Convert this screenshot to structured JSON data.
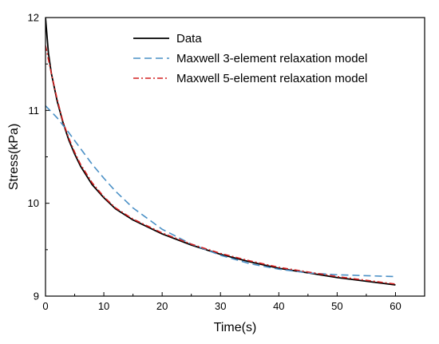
{
  "chart_data": {
    "type": "line",
    "title": "",
    "xlabel": "Time(s)",
    "ylabel": "Stress(kPa)",
    "xlim": [
      0,
      65
    ],
    "ylim": [
      9,
      12
    ],
    "x_ticks": [
      0,
      10,
      20,
      30,
      40,
      50,
      60
    ],
    "y_ticks": [
      9,
      10,
      11,
      12
    ],
    "grid": false,
    "legend_position": "top-right",
    "series": [
      {
        "name": "Data",
        "color": "#000000",
        "style": "solid",
        "x": [
          0,
          0.5,
          1,
          2,
          3,
          4,
          5,
          6,
          8,
          10,
          12,
          15,
          20,
          25,
          30,
          35,
          40,
          45,
          50,
          55,
          60
        ],
        "y": [
          12.0,
          11.62,
          11.4,
          11.1,
          10.87,
          10.68,
          10.53,
          10.4,
          10.2,
          10.06,
          9.94,
          9.82,
          9.67,
          9.55,
          9.45,
          9.37,
          9.3,
          9.25,
          9.2,
          9.16,
          9.12
        ]
      },
      {
        "name": "Maxwell 3-element relaxation model",
        "color": "#4a90c6",
        "style": "dashed",
        "x": [
          0,
          2,
          4,
          6,
          8,
          10,
          12,
          15,
          20,
          25,
          30,
          35,
          40,
          45,
          50,
          55,
          60
        ],
        "y": [
          11.05,
          10.92,
          10.76,
          10.59,
          10.42,
          10.27,
          10.13,
          9.95,
          9.72,
          9.56,
          9.44,
          9.35,
          9.29,
          9.25,
          9.23,
          9.22,
          9.21
        ]
      },
      {
        "name": "Maxwell 5-element relaxation model",
        "color": "#d42020",
        "style": "dashdot",
        "x": [
          0,
          0.5,
          1,
          2,
          3,
          4,
          5,
          6,
          8,
          10,
          12,
          15,
          20,
          25,
          30,
          35,
          40,
          45,
          50,
          55,
          60
        ],
        "y": [
          11.7,
          11.55,
          11.4,
          11.12,
          10.88,
          10.7,
          10.55,
          10.42,
          10.22,
          10.07,
          9.95,
          9.83,
          9.68,
          9.56,
          9.46,
          9.38,
          9.31,
          9.26,
          9.21,
          9.17,
          9.13
        ]
      }
    ]
  }
}
